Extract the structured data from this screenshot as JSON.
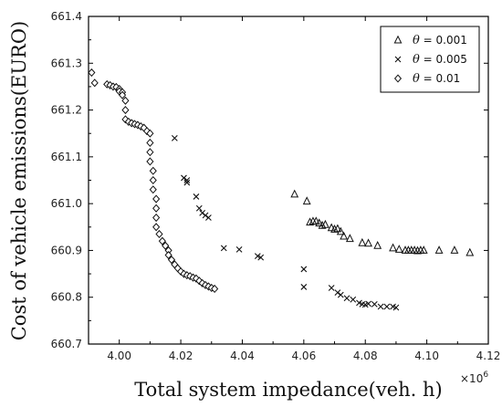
{
  "chart_data": {
    "type": "scatter",
    "title": "",
    "xlabel": "Total system impedance(veh. h)",
    "ylabel": "Cost of vehicle emissions(EURO)",
    "x_multiplier_label": "×10",
    "x_multiplier_exp": "6",
    "xlim": [
      3.99,
      4.12
    ],
    "ylim": [
      660.7,
      661.4
    ],
    "x_ticks": [
      "4.00",
      "4.02",
      "4.04",
      "4.06",
      "4.08",
      "4.10",
      "4.12"
    ],
    "y_ticks": [
      "660.7",
      "660.8",
      "660.9",
      "661.0",
      "661.1",
      "661.2",
      "661.3",
      "661.4"
    ],
    "legend_position": "top-right",
    "series": [
      {
        "name": "θ = 0.001",
        "theta_symbol": "θ",
        "theta_value": "= 0.001",
        "marker": "triangle",
        "points": [
          [
            4.057,
            661.02
          ],
          [
            4.061,
            661.005
          ],
          [
            4.062,
            660.96
          ],
          [
            4.063,
            660.962
          ],
          [
            4.064,
            660.962
          ],
          [
            4.065,
            660.958
          ],
          [
            4.066,
            660.953
          ],
          [
            4.067,
            660.955
          ],
          [
            4.069,
            660.948
          ],
          [
            4.07,
            660.945
          ],
          [
            4.071,
            660.946
          ],
          [
            4.072,
            660.94
          ],
          [
            4.073,
            660.93
          ],
          [
            4.075,
            660.925
          ],
          [
            4.079,
            660.916
          ],
          [
            4.081,
            660.915
          ],
          [
            4.084,
            660.91
          ],
          [
            4.089,
            660.905
          ],
          [
            4.091,
            660.902
          ],
          [
            4.093,
            660.9
          ],
          [
            4.094,
            660.9
          ],
          [
            4.095,
            660.9
          ],
          [
            4.096,
            660.9
          ],
          [
            4.097,
            660.899
          ],
          [
            4.098,
            660.9
          ],
          [
            4.099,
            660.9
          ],
          [
            4.104,
            660.9
          ],
          [
            4.109,
            660.9
          ],
          [
            4.114,
            660.895
          ]
        ]
      },
      {
        "name": "θ = 0.005",
        "theta_symbol": "θ",
        "theta_value": "= 0.005",
        "marker": "x",
        "points": [
          [
            4.018,
            661.14
          ],
          [
            4.021,
            661.055
          ],
          [
            4.022,
            661.05
          ],
          [
            4.022,
            661.045
          ],
          [
            4.025,
            661.015
          ],
          [
            4.026,
            660.99
          ],
          [
            4.027,
            660.98
          ],
          [
            4.028,
            660.975
          ],
          [
            4.029,
            660.97
          ],
          [
            4.034,
            660.905
          ],
          [
            4.039,
            660.902
          ],
          [
            4.045,
            660.888
          ],
          [
            4.046,
            660.885
          ],
          [
            4.06,
            660.86
          ],
          [
            4.06,
            660.822
          ],
          [
            4.069,
            660.82
          ],
          [
            4.071,
            660.81
          ],
          [
            4.072,
            660.805
          ],
          [
            4.074,
            660.798
          ],
          [
            4.076,
            660.795
          ],
          [
            4.078,
            660.788
          ],
          [
            4.079,
            660.785
          ],
          [
            4.08,
            660.784
          ],
          [
            4.081,
            660.786
          ],
          [
            4.083,
            660.785
          ],
          [
            4.085,
            660.78
          ],
          [
            4.087,
            660.78
          ],
          [
            4.089,
            660.78
          ],
          [
            4.09,
            660.778
          ]
        ]
      },
      {
        "name": "θ = 0.01",
        "theta_symbol": "θ",
        "theta_value": "= 0.01",
        "marker": "diamond",
        "points": [
          [
            3.991,
            661.28
          ],
          [
            3.992,
            661.258
          ],
          [
            3.996,
            661.255
          ],
          [
            3.997,
            661.253
          ],
          [
            3.998,
            661.25
          ],
          [
            3.999,
            661.249
          ],
          [
            4.0,
            661.245
          ],
          [
            4.0,
            661.24
          ],
          [
            4.001,
            661.238
          ],
          [
            4.001,
            661.232
          ],
          [
            4.002,
            661.22
          ],
          [
            4.002,
            661.2
          ],
          [
            4.002,
            661.18
          ],
          [
            4.003,
            661.175
          ],
          [
            4.004,
            661.172
          ],
          [
            4.005,
            661.17
          ],
          [
            4.006,
            661.168
          ],
          [
            4.007,
            661.165
          ],
          [
            4.008,
            661.162
          ],
          [
            4.009,
            661.155
          ],
          [
            4.01,
            661.15
          ],
          [
            4.01,
            661.13
          ],
          [
            4.01,
            661.11
          ],
          [
            4.01,
            661.09
          ],
          [
            4.011,
            661.07
          ],
          [
            4.011,
            661.05
          ],
          [
            4.011,
            661.03
          ],
          [
            4.012,
            661.01
          ],
          [
            4.012,
            660.99
          ],
          [
            4.012,
            660.97
          ],
          [
            4.012,
            660.95
          ],
          [
            4.013,
            660.935
          ],
          [
            4.014,
            660.92
          ],
          [
            4.015,
            660.91
          ],
          [
            4.016,
            660.9
          ],
          [
            4.016,
            660.89
          ],
          [
            4.017,
            660.88
          ],
          [
            4.018,
            660.87
          ],
          [
            4.019,
            660.862
          ],
          [
            4.02,
            660.855
          ],
          [
            4.021,
            660.85
          ],
          [
            4.022,
            660.847
          ],
          [
            4.023,
            660.845
          ],
          [
            4.024,
            660.842
          ],
          [
            4.025,
            660.84
          ],
          [
            4.026,
            660.835
          ],
          [
            4.027,
            660.83
          ],
          [
            4.028,
            660.826
          ],
          [
            4.029,
            660.823
          ],
          [
            4.03,
            660.82
          ],
          [
            4.031,
            660.818
          ]
        ]
      }
    ]
  }
}
